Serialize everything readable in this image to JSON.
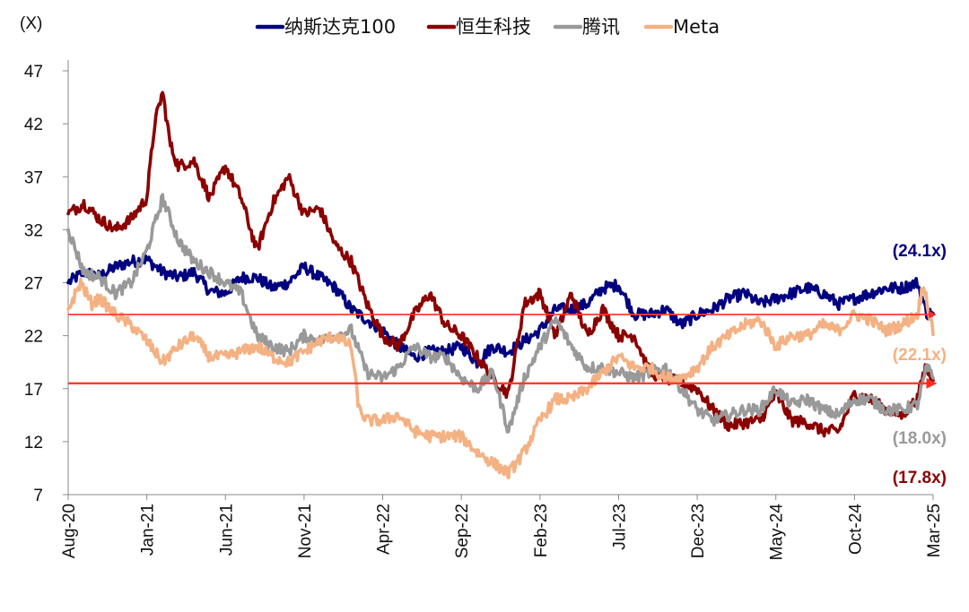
{
  "chart_data": {
    "type": "line",
    "unit_label": "(X)",
    "title": "",
    "xlabel": "",
    "ylabel": "",
    "ylim": [
      7,
      47
    ],
    "yticks": [
      7,
      12,
      17,
      22,
      27,
      32,
      37,
      42,
      47
    ],
    "xlim": [
      0,
      55
    ],
    "x_tick_labels": [
      "Aug-20",
      "Jan-21",
      "Jun-21",
      "Nov-21",
      "Apr-22",
      "Sep-22",
      "Feb-23",
      "Jul-23",
      "Dec-23",
      "May-24",
      "Oct-24",
      "Mar-25"
    ],
    "x_tick_positions": [
      0,
      5,
      10,
      15,
      20,
      25,
      30,
      35,
      40,
      45,
      50,
      55
    ],
    "legend_position": "top",
    "series": [
      {
        "name": "纳斯达克100",
        "color": "#000080",
        "end_label": "(24.1x)",
        "points": [
          [
            0,
            27
          ],
          [
            1,
            28
          ],
          [
            2,
            27.6
          ],
          [
            3,
            28.5
          ],
          [
            4,
            29
          ],
          [
            5,
            29.2
          ],
          [
            6,
            28
          ],
          [
            7,
            27.5
          ],
          [
            8,
            28
          ],
          [
            9,
            26.2
          ],
          [
            10,
            26
          ],
          [
            11,
            27.5
          ],
          [
            12,
            27.5
          ],
          [
            13,
            26.5
          ],
          [
            14,
            27
          ],
          [
            15,
            28.5
          ],
          [
            16,
            27.5
          ],
          [
            17,
            26.5
          ],
          [
            18,
            24.5
          ],
          [
            19,
            23.5
          ],
          [
            20,
            22.5
          ],
          [
            21,
            21
          ],
          [
            22,
            20
          ],
          [
            23,
            20.5
          ],
          [
            24,
            20.5
          ],
          [
            25,
            21
          ],
          [
            26,
            19.5
          ],
          [
            27,
            21
          ],
          [
            28,
            20.5
          ],
          [
            29,
            21.5
          ],
          [
            30,
            22.5
          ],
          [
            31,
            24.5
          ],
          [
            32,
            24.5
          ],
          [
            33,
            25
          ],
          [
            34,
            26.5
          ],
          [
            35,
            26.8
          ],
          [
            36,
            24
          ],
          [
            37,
            24
          ],
          [
            38,
            24.5
          ],
          [
            39,
            23
          ],
          [
            40,
            24
          ],
          [
            41,
            24.5
          ],
          [
            42,
            25.5
          ],
          [
            43,
            26
          ],
          [
            44,
            25
          ],
          [
            45,
            25.5
          ],
          [
            46,
            26
          ],
          [
            47,
            26.5
          ],
          [
            48,
            26
          ],
          [
            49,
            25
          ],
          [
            50,
            25.5
          ],
          [
            51,
            26
          ],
          [
            52,
            26.5
          ],
          [
            53,
            26.5
          ],
          [
            54,
            27
          ],
          [
            54.6,
            24.1
          ],
          [
            55,
            24.1
          ]
        ]
      },
      {
        "name": "恒生科技",
        "color": "#8B0000",
        "end_label": "(17.8x)",
        "points": [
          [
            0,
            33.5
          ],
          [
            1,
            34.5
          ],
          [
            2,
            33
          ],
          [
            3,
            32
          ],
          [
            4,
            33
          ],
          [
            5,
            35
          ],
          [
            5.5,
            42
          ],
          [
            6,
            45
          ],
          [
            6.5,
            40
          ],
          [
            7,
            38
          ],
          [
            8,
            38.5
          ],
          [
            9,
            35
          ],
          [
            10,
            38
          ],
          [
            11,
            35
          ],
          [
            12,
            30
          ],
          [
            13,
            34.5
          ],
          [
            14,
            37
          ],
          [
            15,
            33.5
          ],
          [
            16,
            34
          ],
          [
            17,
            30.5
          ],
          [
            18,
            29
          ],
          [
            19,
            25
          ],
          [
            20,
            22
          ],
          [
            21,
            21
          ],
          [
            22,
            24
          ],
          [
            23,
            26
          ],
          [
            24,
            23
          ],
          [
            25,
            22
          ],
          [
            26,
            20
          ],
          [
            27,
            18
          ],
          [
            28,
            16.5
          ],
          [
            29,
            25
          ],
          [
            30,
            26
          ],
          [
            31,
            22
          ],
          [
            32,
            26
          ],
          [
            33,
            22
          ],
          [
            34,
            24.5
          ],
          [
            35,
            22
          ],
          [
            36,
            22
          ],
          [
            37,
            18.5
          ],
          [
            38,
            18
          ],
          [
            39,
            17.5
          ],
          [
            40,
            17
          ],
          [
            41,
            15
          ],
          [
            42,
            13.5
          ],
          [
            43,
            13.8
          ],
          [
            44,
            14
          ],
          [
            45,
            16.5
          ],
          [
            46,
            14
          ],
          [
            47,
            13.8
          ],
          [
            48,
            13
          ],
          [
            49,
            13
          ],
          [
            50,
            16.5
          ],
          [
            51,
            16
          ],
          [
            52,
            15
          ],
          [
            53,
            14.5
          ],
          [
            54,
            16
          ],
          [
            54.5,
            19
          ],
          [
            55,
            17.8
          ]
        ]
      },
      {
        "name": "腾讯",
        "color": "#999999",
        "end_label": "(18.0x)",
        "points": [
          [
            0,
            32
          ],
          [
            1,
            28
          ],
          [
            2,
            27.5
          ],
          [
            3,
            26
          ],
          [
            4,
            27
          ],
          [
            5,
            30
          ],
          [
            6,
            35
          ],
          [
            7,
            31
          ],
          [
            8,
            29
          ],
          [
            9,
            28
          ],
          [
            10,
            27
          ],
          [
            11,
            26
          ],
          [
            12,
            22
          ],
          [
            13,
            21
          ],
          [
            14,
            20.5
          ],
          [
            15,
            22
          ],
          [
            16,
            21.5
          ],
          [
            17,
            22
          ],
          [
            18,
            22.5
          ],
          [
            19,
            18.5
          ],
          [
            20,
            18
          ],
          [
            21,
            19
          ],
          [
            22,
            21
          ],
          [
            23,
            20
          ],
          [
            24,
            20
          ],
          [
            25,
            18
          ],
          [
            26,
            17
          ],
          [
            27,
            18.5
          ],
          [
            28,
            13
          ],
          [
            29,
            18
          ],
          [
            30,
            21
          ],
          [
            31,
            23.5
          ],
          [
            32,
            21
          ],
          [
            33,
            19
          ],
          [
            34,
            19
          ],
          [
            35,
            18.5
          ],
          [
            36,
            18
          ],
          [
            37,
            18.5
          ],
          [
            38,
            19
          ],
          [
            39,
            17
          ],
          [
            40,
            15
          ],
          [
            41,
            14
          ],
          [
            42,
            14.5
          ],
          [
            43,
            15
          ],
          [
            44,
            15
          ],
          [
            45,
            17
          ],
          [
            46,
            15.5
          ],
          [
            47,
            16
          ],
          [
            48,
            15
          ],
          [
            49,
            14.5
          ],
          [
            50,
            16
          ],
          [
            51,
            16
          ],
          [
            52,
            15
          ],
          [
            53,
            15
          ],
          [
            54,
            15.5
          ],
          [
            54.6,
            19
          ],
          [
            55,
            18
          ]
        ]
      },
      {
        "name": "Meta",
        "color": "#F4B183",
        "end_label": "(22.1x)",
        "points": [
          [
            0,
            24.5
          ],
          [
            0.8,
            27
          ],
          [
            1.5,
            25
          ],
          [
            2,
            25.5
          ],
          [
            3,
            24
          ],
          [
            4,
            23
          ],
          [
            5,
            21.5
          ],
          [
            6,
            19.5
          ],
          [
            7,
            21
          ],
          [
            8,
            22
          ],
          [
            9,
            20
          ],
          [
            10,
            20
          ],
          [
            11,
            20.5
          ],
          [
            12,
            21
          ],
          [
            13,
            20
          ],
          [
            14,
            19.5
          ],
          [
            15,
            20.5
          ],
          [
            16,
            21.5
          ],
          [
            17,
            22
          ],
          [
            18,
            21
          ],
          [
            18.5,
            15
          ],
          [
            19,
            14
          ],
          [
            20,
            14
          ],
          [
            21,
            14.5
          ],
          [
            22,
            13
          ],
          [
            23,
            12.5
          ],
          [
            24,
            12.5
          ],
          [
            25,
            12.5
          ],
          [
            26,
            11
          ],
          [
            27,
            10
          ],
          [
            28,
            9
          ],
          [
            29,
            11
          ],
          [
            30,
            14
          ],
          [
            31,
            16
          ],
          [
            32,
            16
          ],
          [
            33,
            17
          ],
          [
            34,
            18.5
          ],
          [
            35,
            20
          ],
          [
            36,
            19
          ],
          [
            37,
            19
          ],
          [
            38,
            18
          ],
          [
            39,
            18
          ],
          [
            40,
            19
          ],
          [
            41,
            21
          ],
          [
            42,
            22
          ],
          [
            43,
            23
          ],
          [
            44,
            23.5
          ],
          [
            45,
            21
          ],
          [
            46,
            22
          ],
          [
            47,
            22
          ],
          [
            48,
            23
          ],
          [
            49,
            22.5
          ],
          [
            50,
            24
          ],
          [
            51,
            23.5
          ],
          [
            52,
            22.5
          ],
          [
            53,
            23
          ],
          [
            54,
            24
          ],
          [
            54.4,
            27
          ],
          [
            55,
            22.1
          ]
        ]
      }
    ],
    "reference_lines": [
      {
        "y": 24,
        "x_start": 0,
        "x_end": 55,
        "color": "#FF3B30"
      },
      {
        "y": 17.5,
        "x_start": 0,
        "x_end": 55,
        "color": "#FF3B30"
      }
    ]
  }
}
